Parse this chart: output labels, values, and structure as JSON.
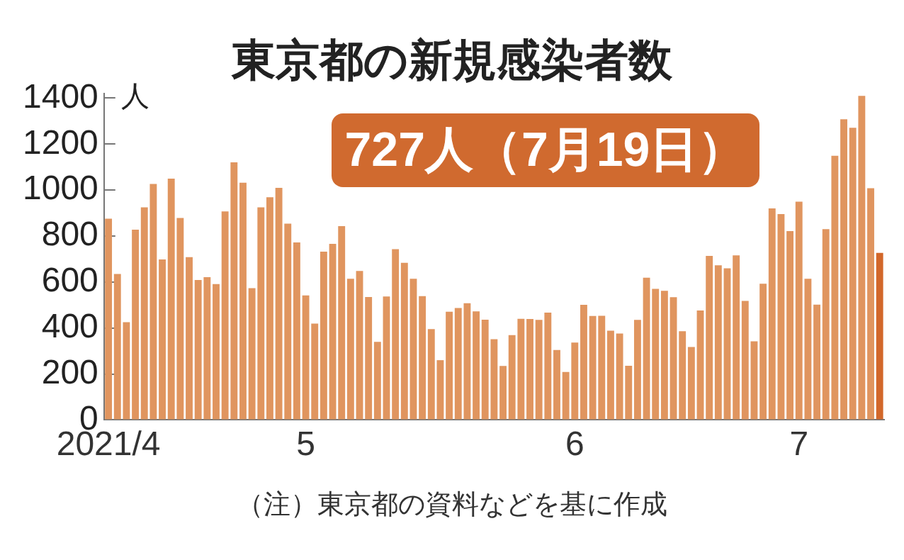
{
  "chart_data": {
    "type": "bar",
    "title": "東京都の新規感染者数",
    "ylabel": "人",
    "annotations": [
      "727人（7月19日）",
      "（注）東京都の資料などを基に作成"
    ],
    "categories": [
      "2021/4",
      null,
      null,
      null,
      null,
      null,
      null,
      null,
      null,
      null,
      null,
      null,
      null,
      null,
      null,
      null,
      null,
      null,
      null,
      null,
      null,
      null,
      "5",
      null,
      null,
      null,
      null,
      null,
      null,
      null,
      null,
      null,
      null,
      null,
      null,
      null,
      null,
      null,
      null,
      null,
      null,
      null,
      null,
      null,
      null,
      null,
      null,
      null,
      null,
      null,
      null,
      null,
      "6",
      null,
      null,
      null,
      null,
      null,
      null,
      null,
      null,
      null,
      null,
      null,
      null,
      null,
      null,
      null,
      null,
      null,
      null,
      null,
      null,
      null,
      null,
      null,
      null,
      "7",
      null,
      null,
      null,
      null,
      null,
      null,
      null,
      null,
      null
    ],
    "values": [
      876,
      635,
      425,
      828,
      925,
      1027,
      698,
      1050,
      879,
      708,
      609,
      621,
      591,
      907,
      1121,
      1032,
      573,
      925,
      969,
      1010,
      854,
      772,
      542,
      419,
      732,
      766,
      843,
      614,
      648,
      535,
      340,
      537,
      743,
      684,
      614,
      539,
      395,
      260,
      471,
      487,
      508,
      472,
      436,
      351,
      235,
      369,
      440,
      439,
      435,
      467,
      304,
      209,
      337,
      501,
      452,
      453,
      388,
      376,
      236,
      435,
      619,
      570,
      562,
      534,
      386,
      317,
      476,
      714,
      673,
      660,
      716,
      518,
      342,
      593,
      920,
      896,
      822,
      950,
      614,
      502,
      830,
      1149,
      1308,
      1271,
      1410,
      1008,
      727
    ],
    "colors": [
      "#e0955f",
      "#e0955f",
      "#e0955f",
      "#e0955f",
      "#e0955f",
      "#e0955f",
      "#e0955f",
      "#e0955f",
      "#e0955f",
      "#e0955f",
      "#e0955f",
      "#e0955f",
      "#e0955f",
      "#e0955f",
      "#e0955f",
      "#e0955f",
      "#e0955f",
      "#e0955f",
      "#e0955f",
      "#e0955f",
      "#e0955f",
      "#e0955f",
      "#e0955f",
      "#e0955f",
      "#e0955f",
      "#e0955f",
      "#e0955f",
      "#e0955f",
      "#e0955f",
      "#e0955f",
      "#e0955f",
      "#e0955f",
      "#e0955f",
      "#e0955f",
      "#e0955f",
      "#e0955f",
      "#e0955f",
      "#e0955f",
      "#e0955f",
      "#e0955f",
      "#e0955f",
      "#e0955f",
      "#e0955f",
      "#e0955f",
      "#e0955f",
      "#e0955f",
      "#e0955f",
      "#e0955f",
      "#e0955f",
      "#e0955f",
      "#e0955f",
      "#e0955f",
      "#e0955f",
      "#e0955f",
      "#e0955f",
      "#e0955f",
      "#e0955f",
      "#e0955f",
      "#e0955f",
      "#e0955f",
      "#e0955f",
      "#e0955f",
      "#e0955f",
      "#e0955f",
      "#e0955f",
      "#e0955f",
      "#e0955f",
      "#e0955f",
      "#e0955f",
      "#e0955f",
      "#e0955f",
      "#e0955f",
      "#e0955f",
      "#e0955f",
      "#e0955f",
      "#e0955f",
      "#e0955f",
      "#e0955f",
      "#e0955f",
      "#e0955f",
      "#e0955f",
      "#e0955f",
      "#e0955f",
      "#e0955f",
      "#e0955f",
      "#e0955f",
      "#d2672a"
    ],
    "ylim": [
      0,
      1420
    ],
    "yticks": [
      0,
      200,
      400,
      600,
      800,
      1000,
      1200,
      1400
    ],
    "grid": false,
    "legend": false
  }
}
